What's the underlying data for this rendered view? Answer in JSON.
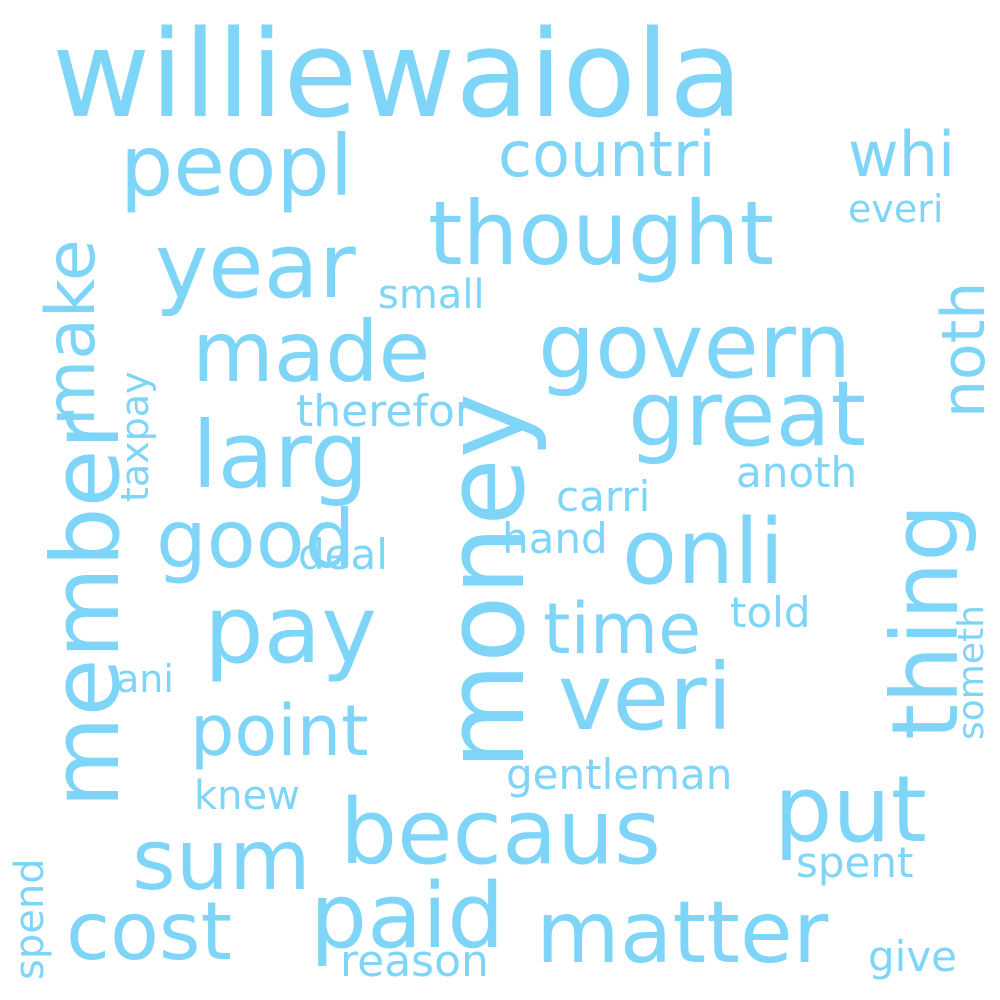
{
  "cloud": {
    "color": "#7fd5f8",
    "words": [
      "williewaiola",
      "peopl",
      "countri",
      "whi",
      "thought",
      "everi",
      "year",
      "noth",
      "small",
      "make",
      "govern",
      "made",
      "taxpay",
      "great",
      "therefor",
      "larg",
      "thing",
      "anoth",
      "member",
      "money",
      "carri",
      "good",
      "onli",
      "hand",
      "deal",
      "pay",
      "time",
      "told",
      "someth",
      "veri",
      "ani",
      "point",
      "put",
      "knew",
      "gentleman",
      "becaus",
      "sum",
      "spent",
      "spend",
      "cost",
      "paid",
      "matter",
      "give",
      "reason"
    ]
  }
}
